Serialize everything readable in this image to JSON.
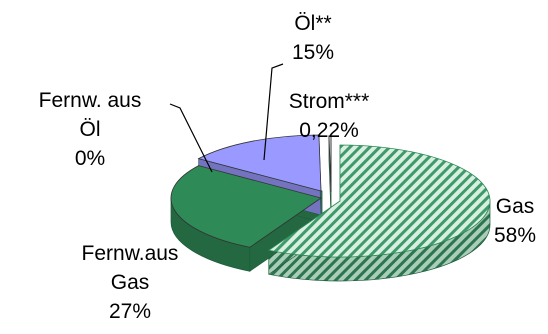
{
  "chart_data": {
    "type": "pie",
    "title": "",
    "style": "3d-exploded",
    "slices": [
      {
        "name": "Gas",
        "value": 58,
        "value_label": "58%",
        "label_lines": [
          "Gas",
          "58%"
        ],
        "color": "#2e8b57",
        "pattern": "diagonal-hatch"
      },
      {
        "name": "Fernw.aus Gas",
        "value": 27,
        "value_label": "27%",
        "label_lines": [
          "Fernw.aus",
          "Gas",
          "27%"
        ],
        "color": "#2e8b57",
        "pattern": "solid"
      },
      {
        "name": "Fernw. aus Öl",
        "value": 0,
        "value_label": "0%",
        "label_lines": [
          "Fernw. aus",
          "Öl",
          "0%"
        ],
        "color": "#9999ff",
        "pattern": "solid"
      },
      {
        "name": "Öl**",
        "value": 15,
        "value_label": "15%",
        "label_lines": [
          "Öl**",
          "15%"
        ],
        "color": "#9999ff",
        "pattern": "solid"
      },
      {
        "name": "Strom***",
        "value": 0.22,
        "value_label": "0,22%",
        "label_lines": [
          "Strom***",
          "0,22%"
        ],
        "color": "#ffffff",
        "pattern": "solid"
      }
    ]
  }
}
